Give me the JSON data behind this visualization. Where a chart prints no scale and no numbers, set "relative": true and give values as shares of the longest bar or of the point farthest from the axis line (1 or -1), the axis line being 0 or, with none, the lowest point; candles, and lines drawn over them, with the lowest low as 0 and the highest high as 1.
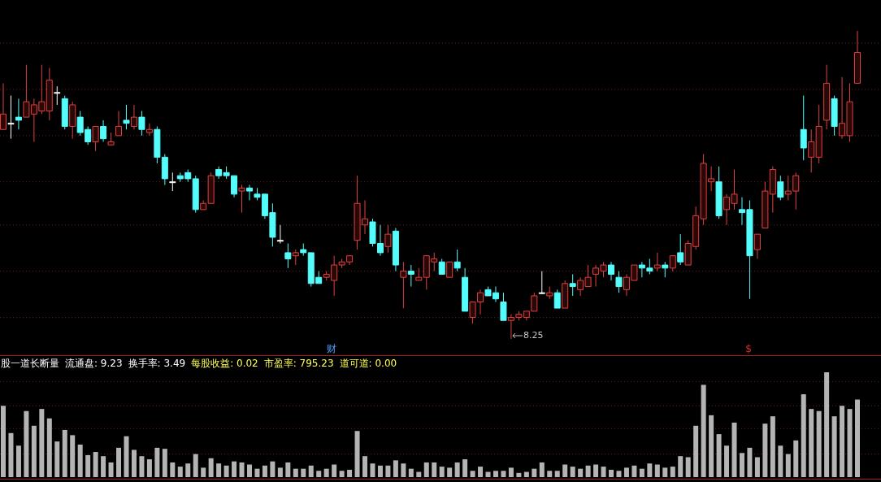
{
  "chart_data": [
    {
      "type": "candlestick",
      "relative": true,
      "ref_lines": [
        {
          "axis": "y",
          "value": 0.96,
          "color": "#6a1e1e",
          "line_style": "dotted"
        },
        {
          "axis": "y",
          "value": 0.81,
          "color": "#6a1e1e",
          "line_style": "dotted"
        },
        {
          "axis": "y",
          "value": 0.66,
          "color": "#6a1e1e",
          "line_style": "dotted"
        },
        {
          "axis": "y",
          "value": 0.51,
          "color": "#6a1e1e",
          "line_style": "dotted"
        },
        {
          "axis": "y",
          "value": 0.37,
          "color": "#6a1e1e",
          "line_style": "dotted"
        },
        {
          "axis": "y",
          "value": 0.22,
          "color": "#6a1e1e",
          "line_style": "dotted"
        },
        {
          "axis": "y",
          "value": 0.07,
          "color": "#6a1e1e",
          "line_style": "dotted"
        }
      ],
      "categories": [
        null,
        null,
        null,
        null,
        null,
        null,
        null,
        null,
        null,
        null,
        null,
        null,
        null,
        null,
        null,
        null,
        null,
        null,
        null,
        null,
        null,
        null,
        null,
        null,
        null,
        null,
        null,
        null,
        null,
        null,
        null,
        null,
        null,
        null,
        null,
        null,
        null,
        null,
        null,
        null,
        null,
        null,
        null,
        null,
        null,
        null,
        null,
        null,
        null,
        null,
        null,
        null,
        null,
        null,
        null,
        null,
        null,
        null,
        null,
        null,
        null,
        null,
        null,
        null,
        null,
        null,
        null,
        null,
        null,
        null,
        null,
        null,
        null,
        null,
        null,
        null,
        null,
        null,
        null,
        null,
        null,
        null,
        null,
        null,
        null,
        null,
        null,
        null,
        null,
        null,
        null,
        null,
        null,
        null,
        null,
        null,
        null,
        null,
        null,
        null,
        null,
        null,
        null,
        null,
        null,
        null,
        null,
        null,
        null,
        null,
        null,
        null
      ],
      "ohlc": [
        [
          0.68,
          0.83,
          0.68,
          0.73
        ],
        [
          0.7,
          0.79,
          0.65,
          0.7
        ],
        [
          0.72,
          0.78,
          0.68,
          0.71
        ],
        [
          0.72,
          0.89,
          0.72,
          0.77
        ],
        [
          0.73,
          0.78,
          0.64,
          0.76
        ],
        [
          0.74,
          0.89,
          0.73,
          0.77
        ],
        [
          0.74,
          0.88,
          0.71,
          0.84
        ],
        [
          0.8,
          0.82,
          0.76,
          0.8
        ],
        [
          0.78,
          0.79,
          0.68,
          0.69
        ],
        [
          0.69,
          0.77,
          0.65,
          0.76
        ],
        [
          0.72,
          0.74,
          0.66,
          0.67
        ],
        [
          0.68,
          0.69,
          0.63,
          0.64
        ],
        [
          0.64,
          0.69,
          0.61,
          0.69
        ],
        [
          0.69,
          0.71,
          0.64,
          0.65
        ],
        [
          0.63,
          0.67,
          0.63,
          0.64
        ],
        [
          0.66,
          0.74,
          0.66,
          0.69
        ],
        [
          0.71,
          0.76,
          0.68,
          0.7
        ],
        [
          0.69,
          0.76,
          0.68,
          0.72
        ],
        [
          0.72,
          0.74,
          0.66,
          0.68
        ],
        [
          0.67,
          0.7,
          0.66,
          0.68
        ],
        [
          0.68,
          0.69,
          0.57,
          0.59
        ],
        [
          0.59,
          0.6,
          0.5,
          0.52
        ],
        [
          0.51,
          0.54,
          0.48,
          0.51
        ],
        [
          0.53,
          0.54,
          0.51,
          0.52
        ],
        [
          0.54,
          0.55,
          0.51,
          0.52
        ],
        [
          0.52,
          0.53,
          0.41,
          0.42
        ],
        [
          0.42,
          0.45,
          0.42,
          0.44
        ],
        [
          0.44,
          0.54,
          0.44,
          0.53
        ],
        [
          0.55,
          0.56,
          0.52,
          0.53
        ],
        [
          0.54,
          0.56,
          0.52,
          0.53
        ],
        [
          0.53,
          0.53,
          0.46,
          0.47
        ],
        [
          0.48,
          0.5,
          0.41,
          0.49
        ],
        [
          0.49,
          0.5,
          0.45,
          0.48
        ],
        [
          0.47,
          0.49,
          0.45,
          0.46
        ],
        [
          0.47,
          0.47,
          0.39,
          0.4
        ],
        [
          0.41,
          0.44,
          0.3,
          0.33
        ],
        [
          0.32,
          0.37,
          0.31,
          0.32
        ],
        [
          0.28,
          0.31,
          0.23,
          0.26
        ],
        [
          0.27,
          0.29,
          0.24,
          0.28
        ],
        [
          0.29,
          0.31,
          0.27,
          0.28
        ],
        [
          0.28,
          0.28,
          0.17,
          0.18
        ],
        [
          0.2,
          0.22,
          0.18,
          0.18
        ],
        [
          0.2,
          0.22,
          0.19,
          0.21
        ],
        [
          0.19,
          0.27,
          0.14,
          0.24
        ],
        [
          0.24,
          0.26,
          0.23,
          0.25
        ],
        [
          0.25,
          0.27,
          0.24,
          0.27
        ],
        [
          0.32,
          0.53,
          0.29,
          0.44
        ],
        [
          0.37,
          0.45,
          0.34,
          0.39
        ],
        [
          0.38,
          0.39,
          0.3,
          0.31
        ],
        [
          0.31,
          0.37,
          0.27,
          0.28
        ],
        [
          0.3,
          0.37,
          0.28,
          0.34
        ],
        [
          0.35,
          0.36,
          0.22,
          0.24
        ],
        [
          0.2,
          0.25,
          0.1,
          0.22
        ],
        [
          0.22,
          0.24,
          0.17,
          0.21
        ],
        [
          0.19,
          0.23,
          0.19,
          0.2
        ],
        [
          0.2,
          0.27,
          0.16,
          0.27
        ],
        [
          0.25,
          0.28,
          0.22,
          0.26
        ],
        [
          0.25,
          0.26,
          0.21,
          0.21
        ],
        [
          0.2,
          0.25,
          0.2,
          0.25
        ],
        [
          0.25,
          0.29,
          0.22,
          0.23
        ],
        [
          0.2,
          0.23,
          0.09,
          0.09
        ],
        [
          0.07,
          0.12,
          0.05,
          0.12
        ],
        [
          0.12,
          0.16,
          0.08,
          0.15
        ],
        [
          0.16,
          0.17,
          0.14,
          0.14
        ],
        [
          0.15,
          0.17,
          0.12,
          0.13
        ],
        [
          0.12,
          0.15,
          0.06,
          0.06
        ],
        [
          0.06,
          0.08,
          0,
          0.07
        ],
        [
          0.07,
          0.09,
          0.06,
          0.08
        ],
        [
          0.07,
          0.09,
          0.06,
          0.09
        ],
        [
          0.09,
          0.15,
          0.09,
          0.14
        ],
        [
          0.15,
          0.22,
          0.15,
          0.15
        ],
        [
          0.14,
          0.17,
          0.13,
          0.15
        ],
        [
          0.15,
          0.16,
          0.1,
          0.1
        ],
        [
          0.1,
          0.19,
          0.1,
          0.18
        ],
        [
          0.18,
          0.21,
          0.14,
          0.17
        ],
        [
          0.16,
          0.2,
          0.14,
          0.19
        ],
        [
          0.17,
          0.24,
          0.17,
          0.2
        ],
        [
          0.21,
          0.24,
          0.17,
          0.23
        ],
        [
          0.22,
          0.25,
          0.2,
          0.24
        ],
        [
          0.24,
          0.25,
          0.19,
          0.21
        ],
        [
          0.2,
          0.22,
          0.15,
          0.17
        ],
        [
          0.16,
          0.21,
          0.14,
          0.2
        ],
        [
          0.19,
          0.24,
          0.19,
          0.24
        ],
        [
          0.24,
          0.25,
          0.2,
          0.23
        ],
        [
          0.23,
          0.26,
          0.21,
          0.22
        ],
        [
          0.23,
          0.28,
          0.22,
          0.24
        ],
        [
          0.24,
          0.25,
          0.2,
          0.23
        ],
        [
          0.23,
          0.27,
          0.22,
          0.27
        ],
        [
          0.28,
          0.34,
          0.24,
          0.25
        ],
        [
          0.24,
          0.32,
          0.24,
          0.31
        ],
        [
          0.3,
          0.43,
          0.29,
          0.4
        ],
        [
          0.39,
          0.6,
          0.37,
          0.57
        ],
        [
          0.51,
          0.56,
          0.48,
          0.52
        ],
        [
          0.51,
          0.56,
          0.39,
          0.4
        ],
        [
          0.42,
          0.47,
          0.37,
          0.46
        ],
        [
          0.44,
          0.55,
          0.42,
          0.47
        ],
        [
          0.42,
          0.46,
          0.37,
          0.41
        ],
        [
          0.42,
          0.45,
          0.13,
          0.27
        ],
        [
          0.29,
          0.34,
          0.26,
          0.34
        ],
        [
          0.36,
          0.51,
          0.36,
          0.48
        ],
        [
          0.47,
          0.56,
          0.41,
          0.55
        ],
        [
          0.51,
          0.53,
          0.45,
          0.46
        ],
        [
          0.47,
          0.53,
          0.45,
          0.48
        ],
        [
          0.48,
          0.54,
          0.42,
          0.53
        ],
        [
          0.68,
          0.79,
          0.58,
          0.62
        ],
        [
          0.59,
          0.68,
          0.54,
          0.64
        ],
        [
          0.59,
          0.76,
          0.57,
          0.69
        ],
        [
          0.71,
          0.89,
          0.68,
          0.83
        ],
        [
          0.78,
          0.79,
          0.66,
          0.69
        ],
        [
          0.66,
          0.85,
          0.65,
          0.7
        ],
        [
          0.66,
          0.83,
          0.64,
          0.77
        ],
        [
          0.83,
          1,
          0.83,
          0.93
        ]
      ],
      "annotations": [
        "8.25",
        "财",
        "$"
      ]
    },
    {
      "type": "bar",
      "relative": true,
      "color": "#b4b4b4",
      "ref_lines": [
        {
          "axis": "y",
          "value": 0.91,
          "color": "#6a1e1e",
          "line_style": "dotted"
        },
        {
          "axis": "y",
          "value": 0.68,
          "color": "#6a1e1e",
          "line_style": "dotted"
        },
        {
          "axis": "y",
          "value": 0.46,
          "color": "#6a1e1e",
          "line_style": "dotted"
        },
        {
          "axis": "y",
          "value": 0.22,
          "color": "#6a1e1e",
          "line_style": "dotted"
        }
      ],
      "title": "股一道长断量",
      "annotations": [
        "流通盘: 9.23",
        "换手率: 3.49",
        "每股收益: 0.02",
        "市盈率: 795.23",
        "道可道: 0.00"
      ],
      "categories": [
        null,
        null,
        null,
        null,
        null,
        null,
        null,
        null,
        null,
        null,
        null,
        null,
        null,
        null,
        null,
        null,
        null,
        null,
        null,
        null,
        null,
        null,
        null,
        null,
        null,
        null,
        null,
        null,
        null,
        null,
        null,
        null,
        null,
        null,
        null,
        null,
        null,
        null,
        null,
        null,
        null,
        null,
        null,
        null,
        null,
        null,
        null,
        null,
        null,
        null,
        null,
        null,
        null,
        null,
        null,
        null,
        null,
        null,
        null,
        null,
        null,
        null,
        null,
        null,
        null,
        null,
        null,
        null,
        null,
        null,
        null,
        null,
        null,
        null,
        null,
        null,
        null,
        null,
        null,
        null,
        null,
        null,
        null,
        null,
        null,
        null,
        null,
        null,
        null,
        null,
        null,
        null,
        null,
        null,
        null,
        null,
        null,
        null,
        null,
        null,
        null,
        null,
        null,
        null,
        null,
        null,
        null,
        null,
        null,
        null,
        null,
        null
      ],
      "values": [
        0.68,
        0.42,
        0.3,
        0.63,
        0.49,
        0.65,
        0.56,
        0.34,
        0.45,
        0.4,
        0.31,
        0.21,
        0.24,
        0.2,
        0.14,
        0.28,
        0.39,
        0.26,
        0.2,
        0.17,
        0.28,
        0.27,
        0.14,
        0.1,
        0.13,
        0.22,
        0.09,
        0.18,
        0.13,
        0.11,
        0.15,
        0.14,
        0.12,
        0.08,
        0.11,
        0.15,
        0.09,
        0.14,
        0.08,
        0.08,
        0.11,
        0.06,
        0.08,
        0.12,
        0.06,
        0.07,
        0.44,
        0.2,
        0.13,
        0.11,
        0.11,
        0.16,
        0.13,
        0.08,
        0.05,
        0.14,
        0.14,
        0.1,
        0.09,
        0.14,
        0.17,
        0.06,
        0.1,
        0.05,
        0.06,
        0.06,
        0.09,
        0.04,
        0.05,
        0.08,
        0.14,
        0.06,
        0.06,
        0.12,
        0.1,
        0.08,
        0.11,
        0.12,
        0.1,
        0.07,
        0.06,
        0.09,
        0.11,
        0.08,
        0.13,
        0.12,
        0.09,
        0.1,
        0.2,
        0.19,
        0.49,
        0.88,
        0.59,
        0.41,
        0.3,
        0.52,
        0.23,
        0.28,
        0.19,
        0.51,
        0.58,
        0.3,
        0.22,
        0.35,
        0.79,
        0.65,
        0.63,
        1,
        0.58,
        0.68,
        0.65,
        0.74
      ]
    }
  ]
}
